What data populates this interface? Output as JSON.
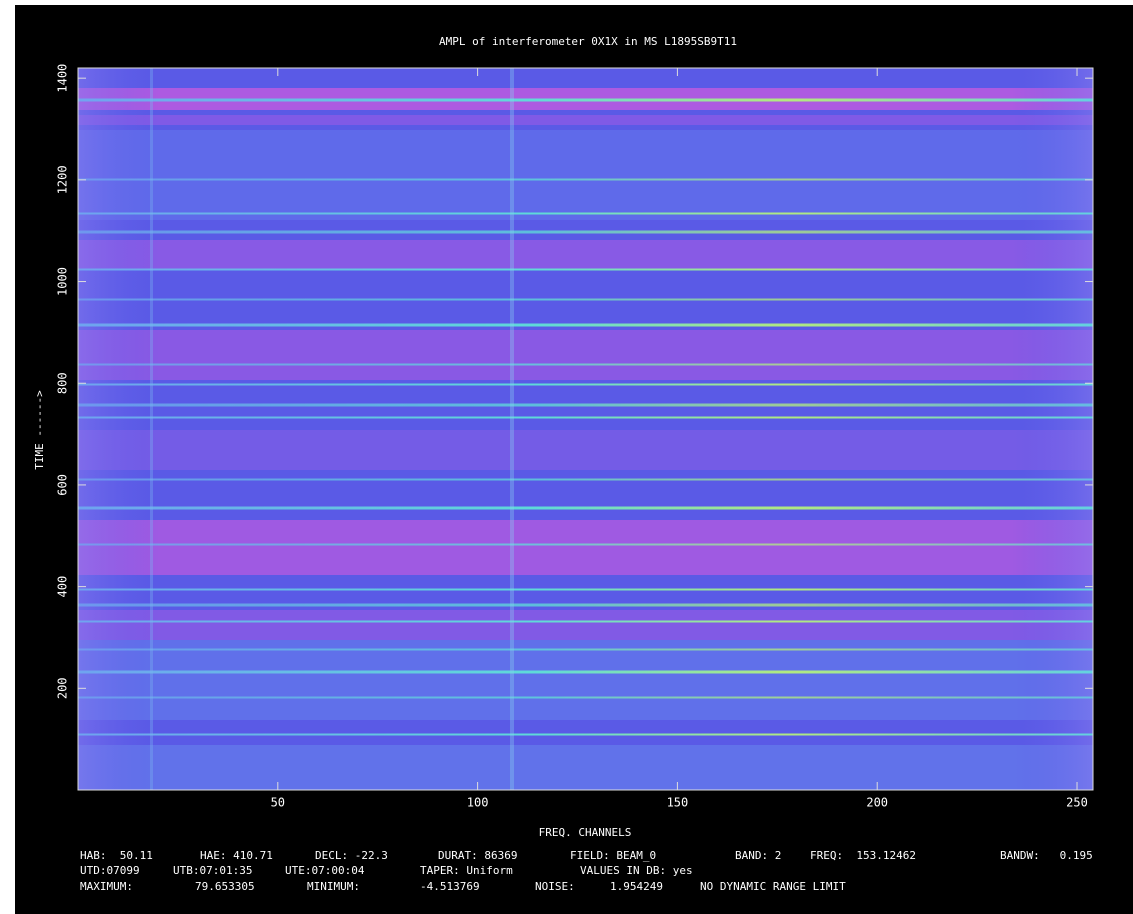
{
  "chart_data": {
    "type": "raster",
    "title": "AMPL of interferometer 0X1X in MS L1895SB9T11",
    "x_label": "FREQ. CHANNELS",
    "y_label": "TIME ------>",
    "xlim": [
      0,
      254
    ],
    "xticks": [
      50,
      100,
      150,
      200,
      250
    ],
    "ylim": [
      0,
      1420
    ],
    "yticks": [
      200,
      400,
      600,
      800,
      1000,
      1200,
      1400
    ],
    "footer_rows": [
      [
        "HAB:  50.11",
        "HAE: 410.71",
        "DECL: -22.3",
        "DURAT: 86369",
        "FIELD: BEAM_0",
        "BAND: 2",
        "FREQ:  153.12462",
        "BANDW:   0.195"
      ],
      [
        "UTD:07099",
        "UTB:07:01:35",
        "UTE:07:00:04",
        "TAPER: Uniform",
        "VALUES IN DB: yes"
      ],
      [
        "MAXIMUM:",
        "79.653305",
        "MINIMUM:",
        "-4.513769",
        "NOISE:",
        "1.954249",
        "NO DYNAMIC RANGE LIMIT"
      ]
    ]
  }
}
